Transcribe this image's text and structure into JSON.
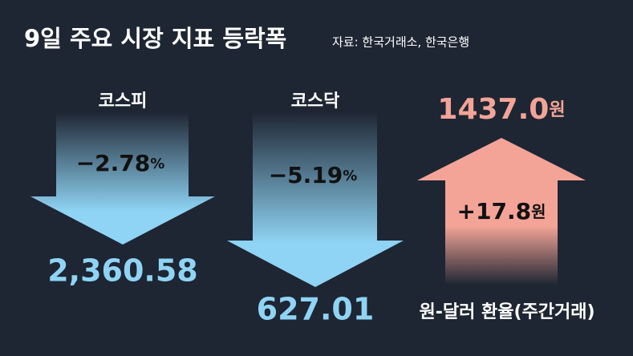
{
  "header": {
    "title": "9일 주요 시장 지표 등락폭",
    "source": "자료: 한국거래소, 한국은행"
  },
  "items": [
    {
      "name": "코스피",
      "change": "−2.78",
      "change_unit": "%",
      "value": "2,360.58"
    },
    {
      "name": "코스닥",
      "change": "−5.19",
      "change_unit": "%",
      "value": "627.01"
    },
    {
      "name": "원-달러 환율(주간거래)",
      "change": "+17.8",
      "change_unit": "원",
      "value": "1437.0",
      "value_unit": "원"
    }
  ]
}
